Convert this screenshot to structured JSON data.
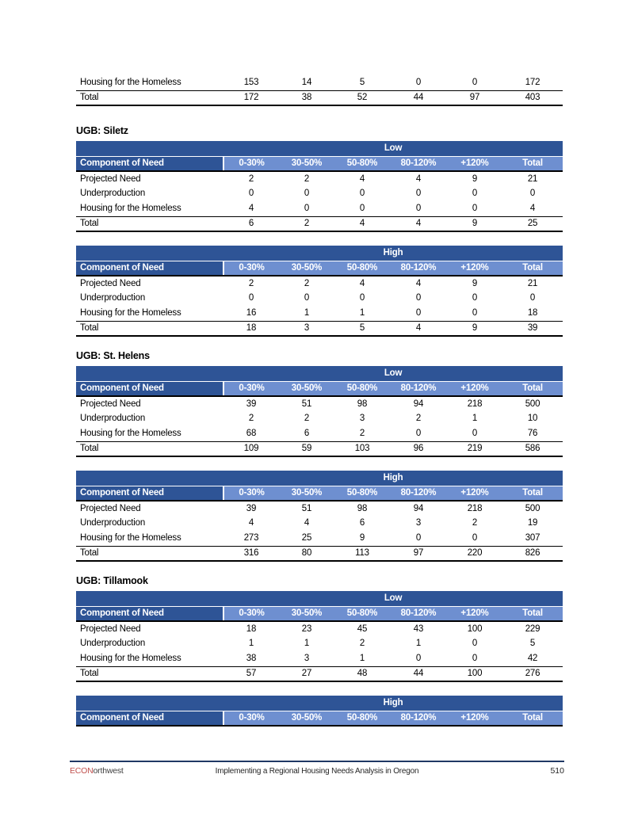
{
  "columns": [
    "0-30%",
    "30-50%",
    "50-80%",
    "80-120%",
    "+120%",
    "Total"
  ],
  "corner_label": "Component of Need",
  "top_partial_table": {
    "rows": [
      {
        "label": "Housing for the Homeless",
        "values": [
          "153",
          "14",
          "5",
          "0",
          "0",
          "172"
        ]
      },
      {
        "label": "Total",
        "values": [
          "172",
          "38",
          "52",
          "44",
          "97",
          "403"
        ]
      }
    ]
  },
  "sections": [
    {
      "heading": "UGB: Siletz",
      "tables": [
        {
          "scenario": "Low",
          "rows": [
            {
              "label": "Projected Need",
              "values": [
                "2",
                "2",
                "4",
                "4",
                "9",
                "21"
              ]
            },
            {
              "label": "Underproduction",
              "values": [
                "0",
                "0",
                "0",
                "0",
                "0",
                "0"
              ]
            },
            {
              "label": "Housing for the Homeless",
              "values": [
                "4",
                "0",
                "0",
                "0",
                "0",
                "4"
              ]
            },
            {
              "label": "Total",
              "values": [
                "6",
                "2",
                "4",
                "4",
                "9",
                "25"
              ]
            }
          ]
        },
        {
          "scenario": "High",
          "rows": [
            {
              "label": "Projected Need",
              "values": [
                "2",
                "2",
                "4",
                "4",
                "9",
                "21"
              ]
            },
            {
              "label": "Underproduction",
              "values": [
                "0",
                "0",
                "0",
                "0",
                "0",
                "0"
              ]
            },
            {
              "label": "Housing for the Homeless",
              "values": [
                "16",
                "1",
                "1",
                "0",
                "0",
                "18"
              ]
            },
            {
              "label": "Total",
              "values": [
                "18",
                "3",
                "5",
                "4",
                "9",
                "39"
              ]
            }
          ]
        }
      ]
    },
    {
      "heading": "UGB: St. Helens",
      "tables": [
        {
          "scenario": "Low",
          "rows": [
            {
              "label": "Projected Need",
              "values": [
                "39",
                "51",
                "98",
                "94",
                "218",
                "500"
              ]
            },
            {
              "label": "Underproduction",
              "values": [
                "2",
                "2",
                "3",
                "2",
                "1",
                "10"
              ]
            },
            {
              "label": "Housing for the Homeless",
              "values": [
                "68",
                "6",
                "2",
                "0",
                "0",
                "76"
              ]
            },
            {
              "label": "Total",
              "values": [
                "109",
                "59",
                "103",
                "96",
                "219",
                "586"
              ]
            }
          ]
        },
        {
          "scenario": "High",
          "rows": [
            {
              "label": "Projected Need",
              "values": [
                "39",
                "51",
                "98",
                "94",
                "218",
                "500"
              ]
            },
            {
              "label": "Underproduction",
              "values": [
                "4",
                "4",
                "6",
                "3",
                "2",
                "19"
              ]
            },
            {
              "label": "Housing for the Homeless",
              "values": [
                "273",
                "25",
                "9",
                "0",
                "0",
                "307"
              ]
            },
            {
              "label": "Total",
              "values": [
                "316",
                "80",
                "113",
                "97",
                "220",
                "826"
              ]
            }
          ]
        }
      ]
    },
    {
      "heading": "UGB: Tillamook",
      "tables": [
        {
          "scenario": "Low",
          "rows": [
            {
              "label": "Projected Need",
              "values": [
                "18",
                "23",
                "45",
                "43",
                "100",
                "229"
              ]
            },
            {
              "label": "Underproduction",
              "values": [
                "1",
                "1",
                "2",
                "1",
                "0",
                "5"
              ]
            },
            {
              "label": "Housing for the Homeless",
              "values": [
                "38",
                "3",
                "1",
                "0",
                "0",
                "42"
              ]
            },
            {
              "label": "Total",
              "values": [
                "57",
                "27",
                "48",
                "44",
                "100",
                "276"
              ]
            }
          ]
        },
        {
          "scenario": "High",
          "header_only": true,
          "rows": []
        }
      ]
    }
  ],
  "footer": {
    "brand_econ": "ECON",
    "brand_rest": "orthwest",
    "center_text": "Implementing a Regional Housing Needs Analysis in Oregon",
    "page_number": "510"
  },
  "colors": {
    "dark_blue": "#2E5496",
    "light_blue": "#6E8FD0",
    "footer_rule": "#1F3864",
    "brand_red": "#C0504D"
  }
}
